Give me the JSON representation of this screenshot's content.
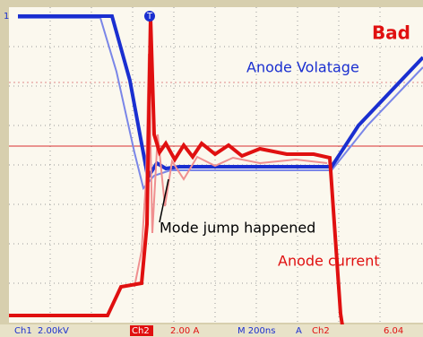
{
  "labels": {
    "verdict": "Bad",
    "anode_voltage": "Anode Volatage",
    "mode_jump": "Mode jump happened",
    "anode_current": "Anode current",
    "ch1_marker": "1",
    "trigger_marker": "T"
  },
  "status_bar": {
    "ch1": "Ch1",
    "ch1_scale": "2.00kV",
    "ch2": "Ch2",
    "ch2_scale": "2.00 A",
    "timebase": "M 200ns",
    "trigger": "A",
    "trigger_source": "Ch2",
    "trigger_level": "6.04"
  }
}
